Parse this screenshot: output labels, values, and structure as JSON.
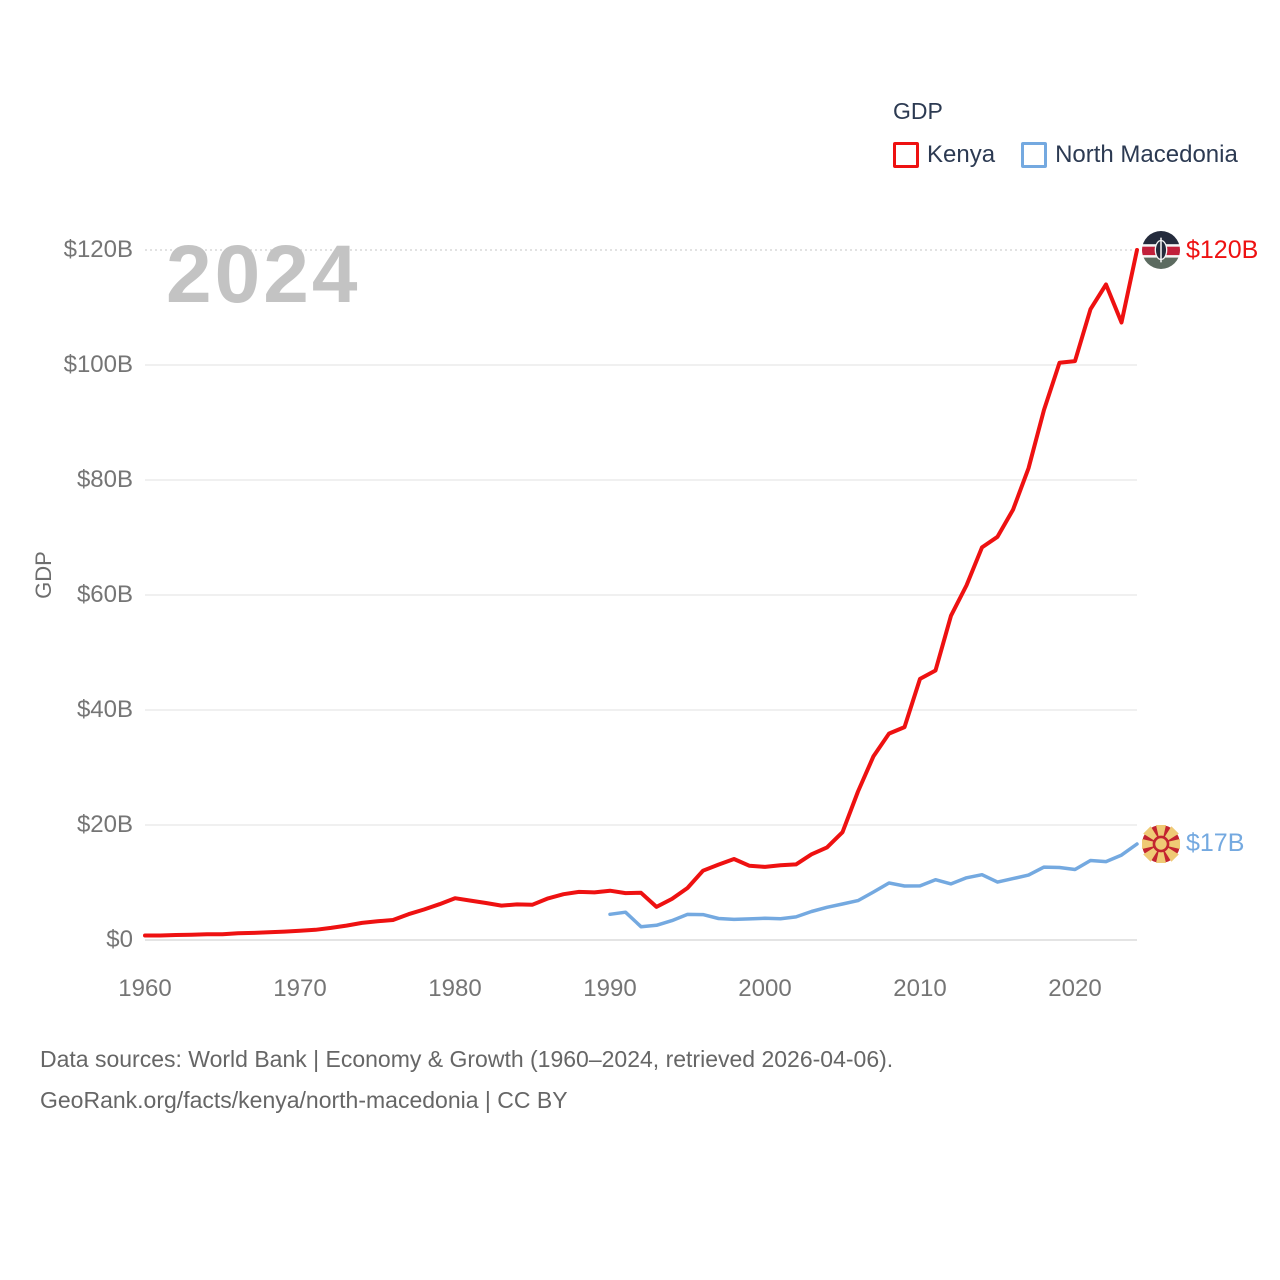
{
  "legend": {
    "title": "GDP",
    "items": [
      {
        "label": "Kenya",
        "color": "#ee1111"
      },
      {
        "label": "North Macedonia",
        "color": "#74a9e0"
      }
    ]
  },
  "watermark": "2024",
  "colors": {
    "kenya": "#ee1111",
    "north_macedonia": "#74a9e0",
    "axis_text": "#757575",
    "gridline": "#ececec",
    "legend_text": "#2c3a52",
    "watermark": "#c3c3c3",
    "footer_text": "#666666"
  },
  "y_axis": {
    "title": "GDP",
    "ticks": [
      {
        "value": 0,
        "label": "$0"
      },
      {
        "value": 20,
        "label": "$20B"
      },
      {
        "value": 40,
        "label": "$40B"
      },
      {
        "value": 60,
        "label": "$60B"
      },
      {
        "value": 80,
        "label": "$80B"
      },
      {
        "value": 100,
        "label": "$100B"
      },
      {
        "value": 120,
        "label": "$120B"
      }
    ]
  },
  "x_axis": {
    "ticks": [
      {
        "value": 1960,
        "label": "1960"
      },
      {
        "value": 1970,
        "label": "1970"
      },
      {
        "value": 1980,
        "label": "1980"
      },
      {
        "value": 1990,
        "label": "1990"
      },
      {
        "value": 2000,
        "label": "2000"
      },
      {
        "value": 2010,
        "label": "2010"
      },
      {
        "value": 2020,
        "label": "2020"
      }
    ]
  },
  "chart_data": {
    "type": "line",
    "title": "GDP",
    "ylabel": "GDP",
    "units": "current US$ billions",
    "x_range": [
      1960,
      2024
    ],
    "ylim": [
      0,
      120
    ],
    "grid": "horizontal",
    "legend_position": "top-right",
    "series": [
      {
        "name": "Kenya",
        "color": "#ee1111",
        "start_year": 1960,
        "values": [
          0.79,
          0.79,
          0.87,
          0.93,
          1.0,
          1.0,
          1.16,
          1.23,
          1.35,
          1.46,
          1.6,
          1.78,
          2.11,
          2.5,
          2.97,
          3.26,
          3.47,
          4.49,
          5.3,
          6.23,
          7.27,
          6.85,
          6.43,
          5.98,
          6.19,
          6.14,
          7.24,
          7.97,
          8.36,
          8.28,
          8.57,
          8.15,
          8.21,
          5.75,
          7.15,
          9.05,
          12.05,
          13.12,
          14.09,
          12.9,
          12.71,
          12.99,
          13.15,
          14.9,
          16.1,
          18.74,
          25.83,
          31.96,
          35.9,
          37.02,
          45.41,
          46.87,
          56.4,
          61.67,
          68.28,
          70.12,
          74.82,
          82.04,
          92.2,
          100.38,
          100.67,
          109.7,
          114.0,
          107.4,
          120.0
        ]
      },
      {
        "name": "North Macedonia",
        "color": "#74a9e0",
        "start_year": 1990,
        "values": [
          4.47,
          4.83,
          2.32,
          2.55,
          3.38,
          4.45,
          4.42,
          3.74,
          3.58,
          3.67,
          3.77,
          3.7,
          4.02,
          4.95,
          5.68,
          6.26,
          6.86,
          8.34,
          9.91,
          9.4,
          9.41,
          10.49,
          9.75,
          10.82,
          11.36,
          10.07,
          10.67,
          11.28,
          12.67,
          12.6,
          12.26,
          13.83,
          13.64,
          14.76,
          16.7
        ]
      }
    ]
  },
  "end_labels": [
    {
      "series": "Kenya",
      "label": "$120B"
    },
    {
      "series": "North Macedonia",
      "label": "$17B"
    }
  ],
  "footer": {
    "line1": "Data sources: World Bank | Economy & Growth (1960–2024, retrieved 2026-04-06).",
    "line2": "GeoRank.org/facts/kenya/north-macedonia | CC BY"
  }
}
